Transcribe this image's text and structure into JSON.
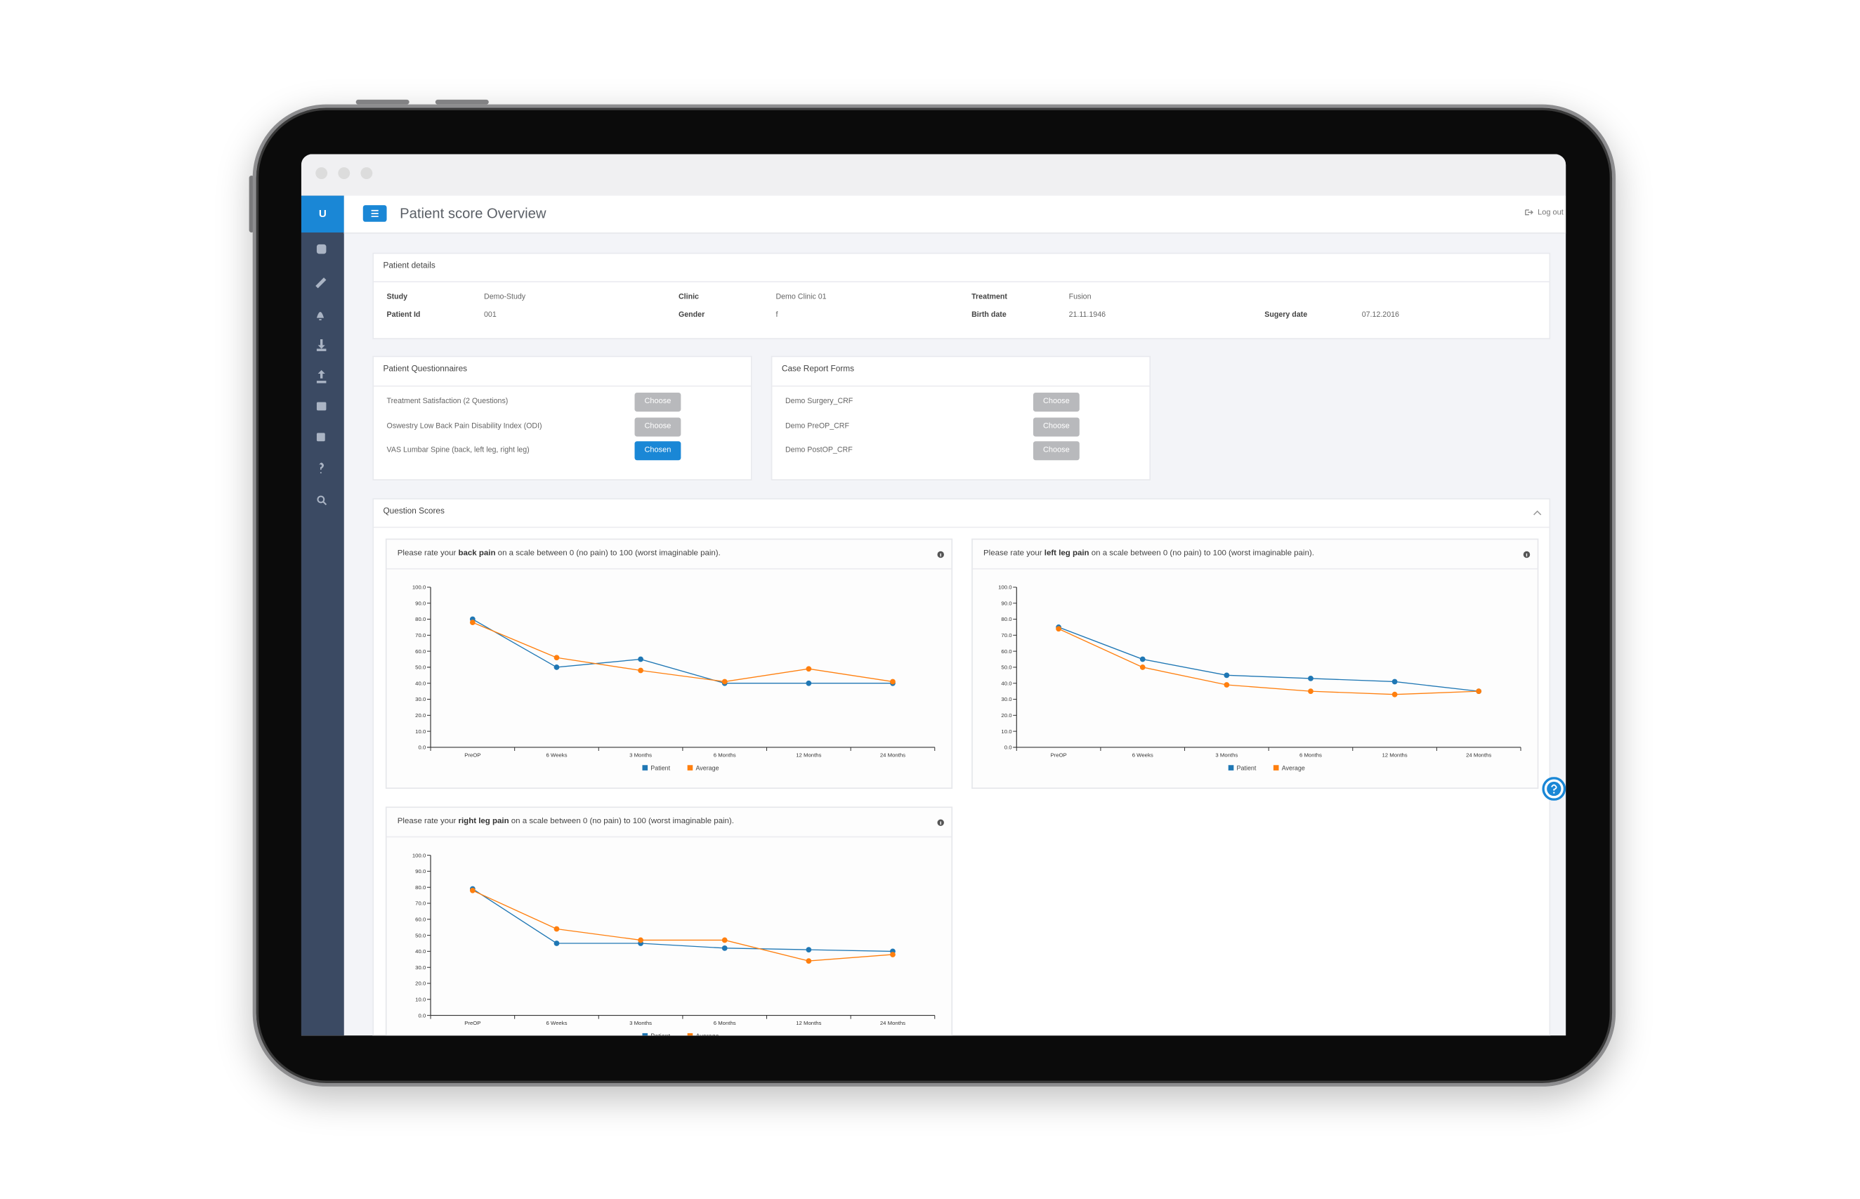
{
  "sidebar": {
    "logo": "U"
  },
  "header": {
    "title": "Patient score Overview",
    "logout": "Log out"
  },
  "patient_details": {
    "title": "Patient details",
    "rows": [
      [
        {
          "label": "Study",
          "value": "Demo-Study"
        },
        {
          "label": "Clinic",
          "value": "Demo Clinic 01"
        },
        {
          "label": "Treatment",
          "value": "Fusion"
        }
      ],
      [
        {
          "label": "Patient Id",
          "value": "001"
        },
        {
          "label": "Gender",
          "value": "f"
        },
        {
          "label": "Birth date",
          "value": "21.11.1946"
        },
        {
          "label": "Sugery date",
          "value": "07.12.2016"
        }
      ]
    ]
  },
  "questionnaires": {
    "title": "Patient Questionnaires",
    "items": [
      {
        "name": "Treatment Satisfaction (2 Questions)",
        "button": "Choose",
        "chosen": false
      },
      {
        "name": "Oswestry Low Back Pain Disability Index (ODI)",
        "button": "Choose",
        "chosen": false
      },
      {
        "name": "VAS Lumbar Spine (back, left leg, right leg)",
        "button": "Chosen",
        "chosen": true
      }
    ]
  },
  "case_report_forms": {
    "title": "Case Report Forms",
    "items": [
      {
        "name": "Demo Surgery_CRF",
        "button": "Choose",
        "chosen": false
      },
      {
        "name": "Demo PreOP_CRF",
        "button": "Choose",
        "chosen": false
      },
      {
        "name": "Demo PostOP_CRF",
        "button": "Choose",
        "chosen": false
      }
    ]
  },
  "question_scores": {
    "title": "Question Scores"
  },
  "chart_data": [
    {
      "type": "line",
      "title": [
        "Please rate your",
        "back pain",
        "on a scale between 0 (no pain) to 100 (worst imaginable pain)."
      ],
      "categories": [
        "PreOP",
        "6 Weeks",
        "3 Months",
        "6 Months",
        "12 Months",
        "24 Months"
      ],
      "series": [
        {
          "name": "Patient",
          "color": "#1f77b4",
          "values": [
            80,
            50,
            55,
            40,
            40,
            40
          ]
        },
        {
          "name": "Average",
          "color": "#ff7f0e",
          "values": [
            78,
            56,
            48,
            41,
            49,
            41
          ]
        }
      ],
      "ylim": [
        0,
        100
      ],
      "yticks": [
        {
          "value": 0,
          "label": "0.0"
        },
        {
          "value": 10,
          "label": "10.0"
        },
        {
          "value": 20,
          "label": "20.0"
        },
        {
          "value": 30,
          "label": "30.0"
        },
        {
          "value": 40,
          "label": "40.0"
        },
        {
          "value": 50,
          "label": "50.0"
        },
        {
          "value": 60,
          "label": "60.0"
        },
        {
          "value": 70,
          "label": "70.0"
        },
        {
          "value": 80,
          "label": "80.0"
        },
        {
          "value": 90,
          "label": "90.0"
        },
        {
          "value": 100,
          "label": "100.0"
        }
      ]
    },
    {
      "type": "line",
      "title": [
        "Please rate your",
        "left leg pain",
        "on a scale between 0 (no pain) to 100 (worst imaginable pain)."
      ],
      "categories": [
        "PreOP",
        "6 Weeks",
        "3 Months",
        "6 Months",
        "12 Months",
        "24 Months"
      ],
      "series": [
        {
          "name": "Patient",
          "color": "#1f77b4",
          "values": [
            75,
            55,
            45,
            43,
            41,
            35
          ]
        },
        {
          "name": "Average",
          "color": "#ff7f0e",
          "values": [
            74,
            50,
            39,
            35,
            33,
            35
          ]
        }
      ],
      "ylim": [
        0,
        100
      ],
      "yticks": [
        {
          "value": 0,
          "label": "0.0"
        },
        {
          "value": 10,
          "label": "10.0"
        },
        {
          "value": 20,
          "label": "20.0"
        },
        {
          "value": 30,
          "label": "30.0"
        },
        {
          "value": 40,
          "label": "40.0"
        },
        {
          "value": 50,
          "label": "50.0"
        },
        {
          "value": 60,
          "label": "60.0"
        },
        {
          "value": 70,
          "label": "70.0"
        },
        {
          "value": 80,
          "label": "80.0"
        },
        {
          "value": 90,
          "label": "90.0"
        },
        {
          "value": 100,
          "label": "100.0"
        }
      ]
    },
    {
      "type": "line",
      "title": [
        "Please rate your",
        "right leg pain",
        "on a scale between 0 (no pain) to 100 (worst imaginable pain)."
      ],
      "categories": [
        "PreOP",
        "6 Weeks",
        "3 Months",
        "6 Months",
        "12 Months",
        "24 Months"
      ],
      "series": [
        {
          "name": "Patient",
          "color": "#1f77b4",
          "values": [
            79,
            45,
            45,
            42,
            41,
            40
          ]
        },
        {
          "name": "Average",
          "color": "#ff7f0e",
          "values": [
            78,
            54,
            47,
            47,
            34,
            38
          ]
        }
      ],
      "ylim": [
        0,
        100
      ],
      "yticks": [
        {
          "value": 0,
          "label": "0.0"
        },
        {
          "value": 10,
          "label": "10.0"
        },
        {
          "value": 20,
          "label": "20.0"
        },
        {
          "value": 30,
          "label": "30.0"
        },
        {
          "value": 40,
          "label": "40.0"
        },
        {
          "value": 50,
          "label": "50.0"
        },
        {
          "value": 60,
          "label": "60.0"
        },
        {
          "value": 70,
          "label": "70.0"
        },
        {
          "value": 80,
          "label": "80.0"
        },
        {
          "value": 90,
          "label": "90.0"
        },
        {
          "value": 100,
          "label": "100.0"
        }
      ]
    }
  ]
}
